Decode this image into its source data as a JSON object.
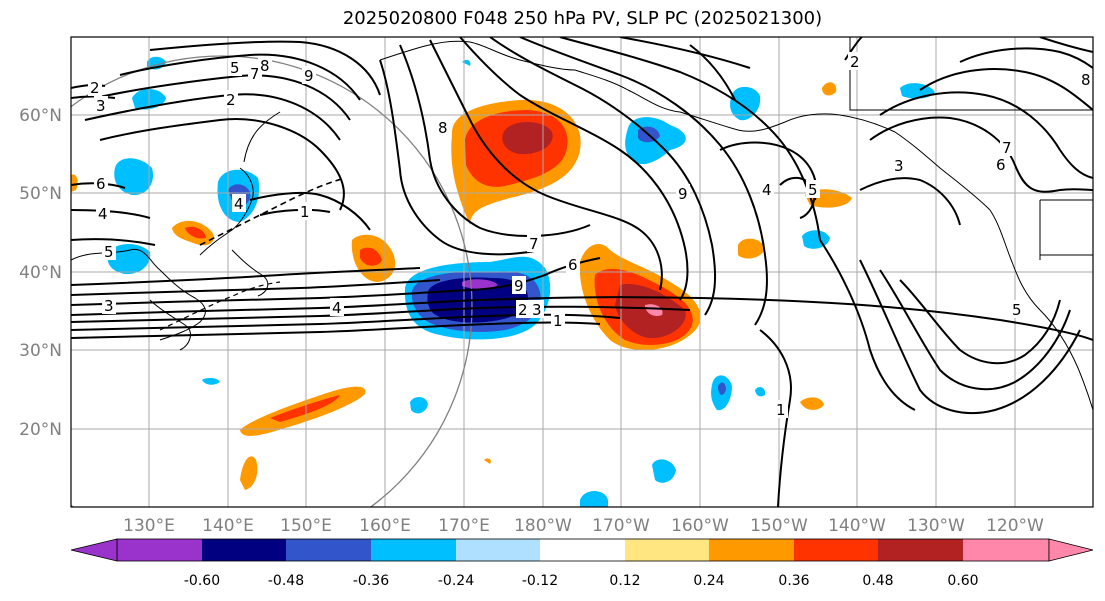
{
  "title": "2025020800 F048 250 hPa PV, SLP PC (2025021300)",
  "map": {
    "lat_labels": [
      "60°N",
      "50°N",
      "40°N",
      "30°N",
      "20°N"
    ],
    "lon_labels": [
      "130°E",
      "140°E",
      "150°E",
      "160°E",
      "170°E",
      "180°W",
      "170°W",
      "160°W",
      "150°W",
      "140°W",
      "130°W",
      "120°W"
    ],
    "contour_labels": [
      "2",
      "3",
      "4",
      "5",
      "6",
      "7",
      "8",
      "9",
      "1",
      "2",
      "3",
      "4",
      "5",
      "6",
      "7",
      "8",
      "9",
      "1",
      "2",
      "3",
      "4",
      "5",
      "6",
      "7",
      "8",
      "9",
      "1",
      "2",
      "3",
      "4",
      "5"
    ]
  },
  "colorbar": {
    "labels": [
      "-0.60",
      "-0.48",
      "-0.36",
      "-0.24",
      "-0.12",
      "0.12",
      "0.24",
      "0.36",
      "0.48",
      "0.60"
    ],
    "colors": [
      "#9933cc",
      "#000080",
      "#3355cc",
      "#00bfff",
      "#b0e0ff",
      "#ffffff",
      "#ffe680",
      "#ff9900",
      "#ff3300",
      "#b22222",
      "#ff88aa"
    ]
  },
  "colors": {
    "grid": "#aaaaaa",
    "contour": "#000000",
    "coast": "#000000"
  }
}
